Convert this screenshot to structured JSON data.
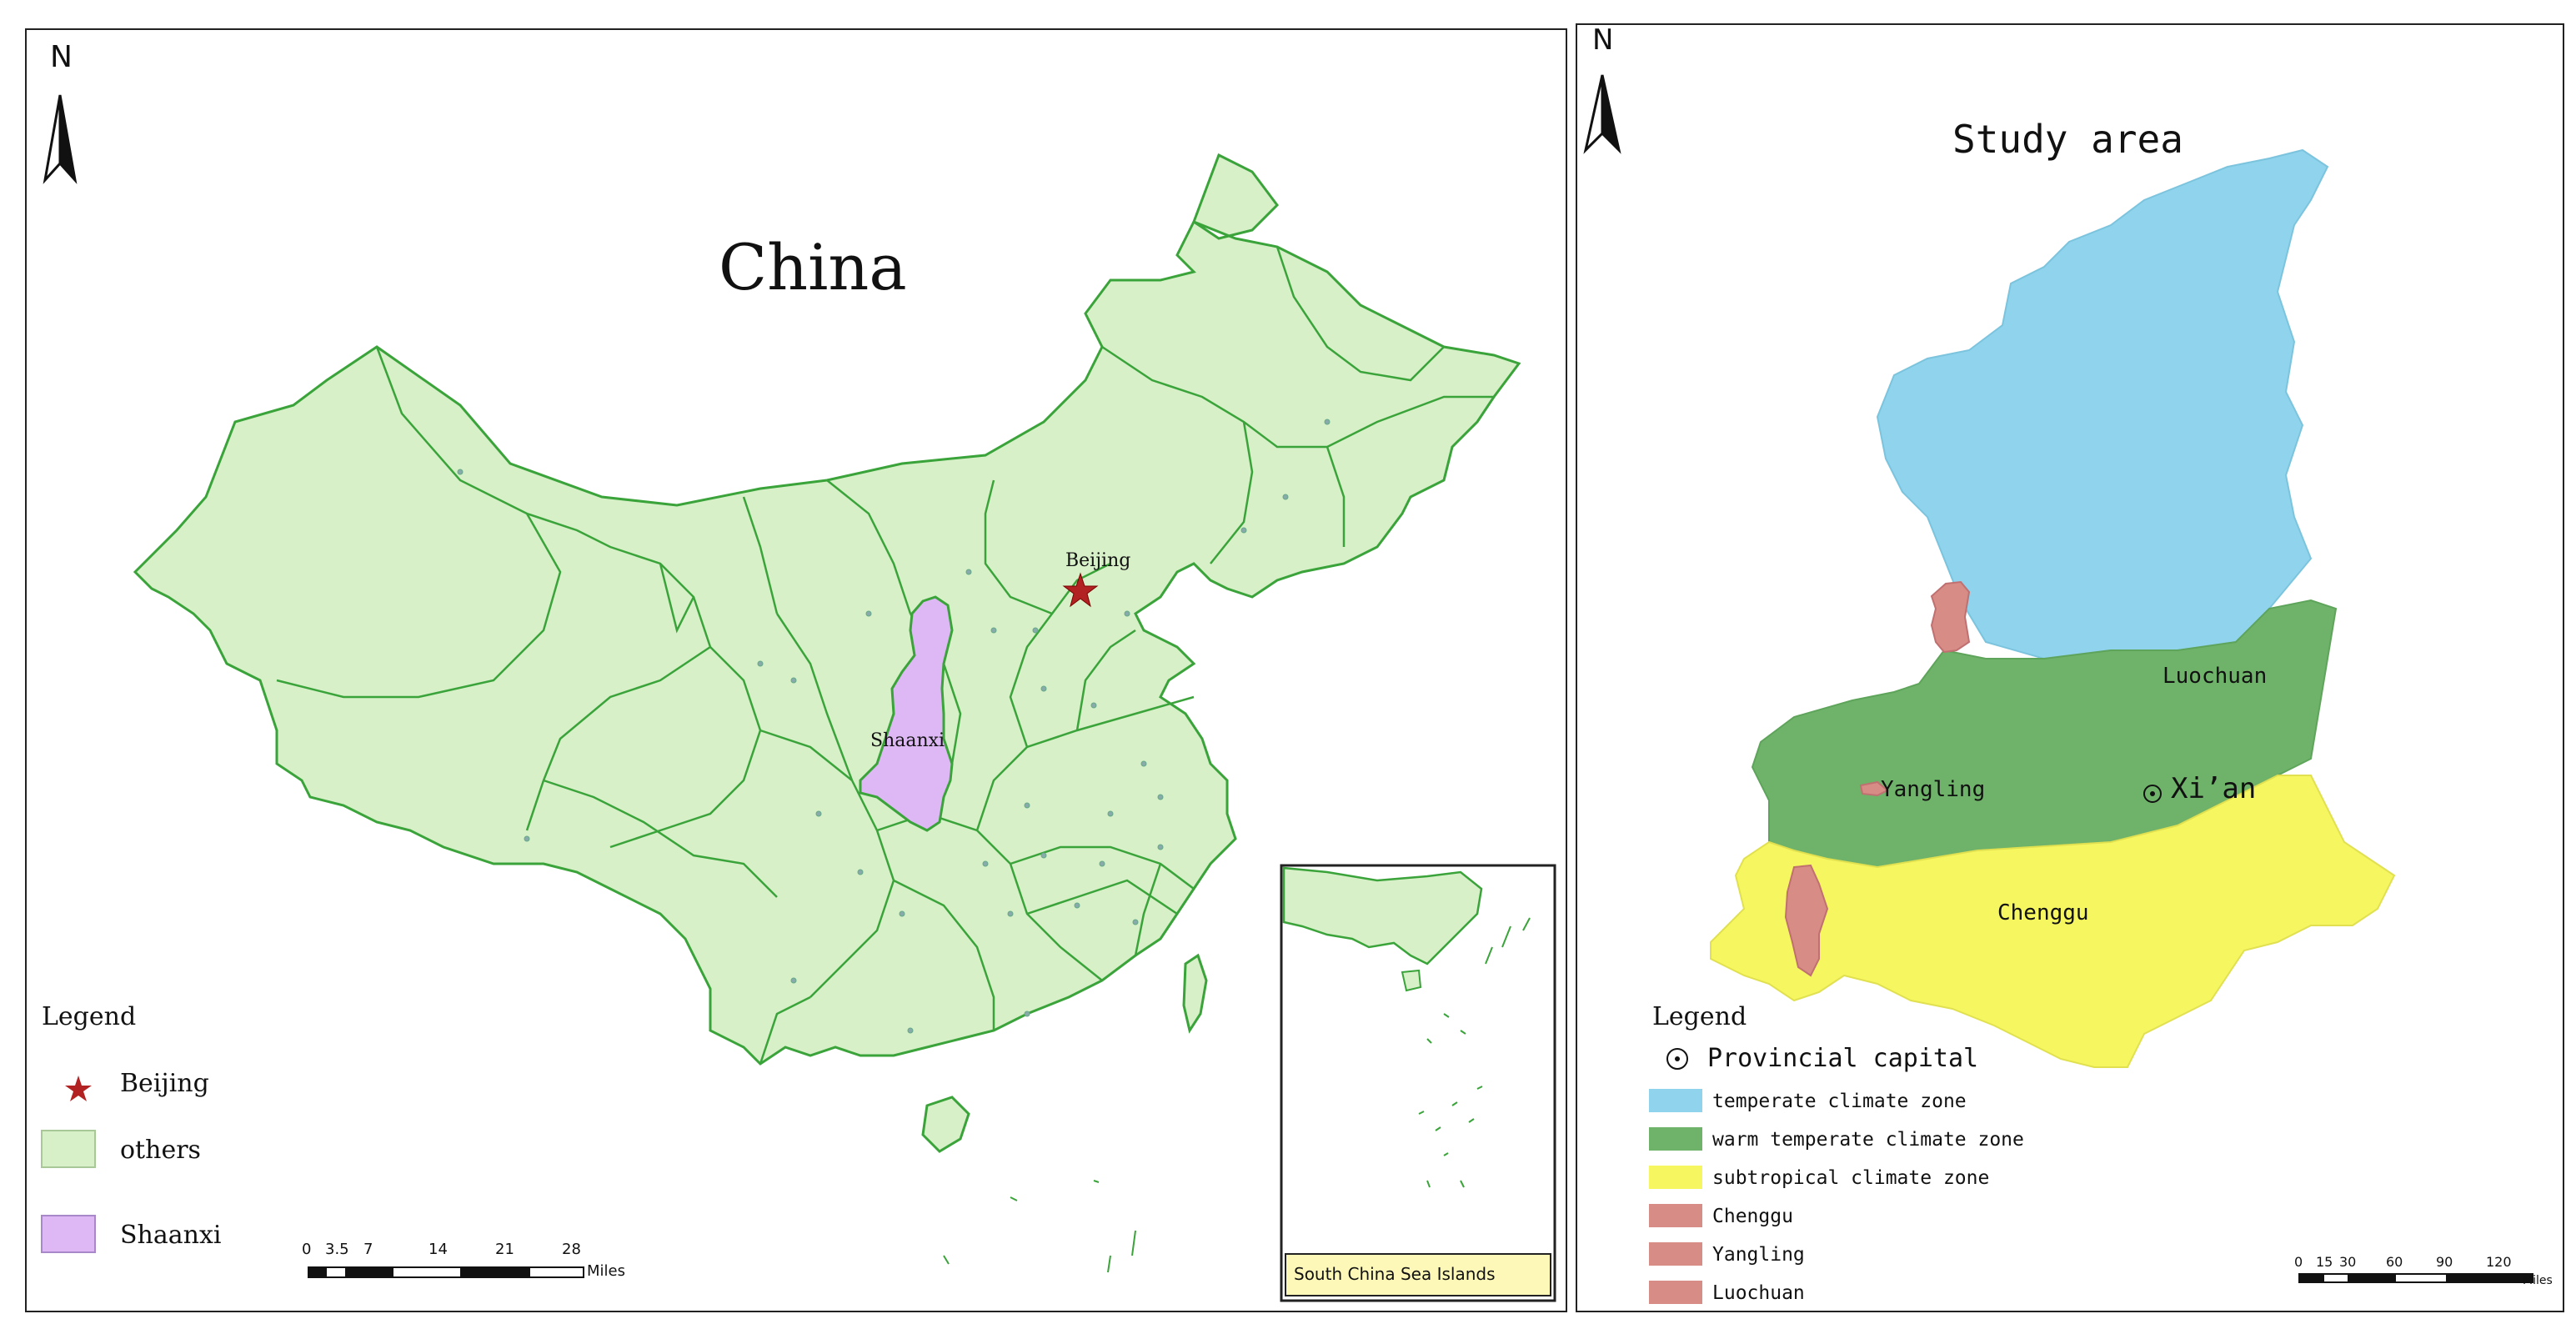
{
  "china_map": {
    "north_label": "N",
    "title": "China",
    "labels": {
      "beijing": "Beijing",
      "shaanxi": "Shaanxi"
    },
    "inset_label": "South China Sea Islands",
    "legend": {
      "title": "Legend",
      "items": [
        {
          "label": "Beijing",
          "symbol": "star",
          "color": "#b22222"
        },
        {
          "label": "others",
          "symbol": "box",
          "color": "#d7f0c8"
        },
        {
          "label": "Shaanxi",
          "symbol": "box",
          "color": "#deb8f5"
        }
      ]
    },
    "scale_bar": {
      "ticks": [
        "0",
        "3.5",
        "7",
        "14",
        "21",
        "28"
      ],
      "unit": "Miles"
    },
    "colors": {
      "land": "#d7f0c8",
      "border": "#3aa33a",
      "shaanxi": "#deb8f5",
      "star": "#b22222"
    }
  },
  "study_area_map": {
    "north_label": "N",
    "title": "Study area",
    "labels": {
      "luochuan": "Luochuan",
      "yangling": "Yangling",
      "xian": "Xi’an",
      "chenggu": "Chenggu"
    },
    "legend": {
      "title": "Legend",
      "items": [
        {
          "label": "Provincial capital",
          "symbol": "dot-circle"
        },
        {
          "label": "temperate climate zone",
          "symbol": "box",
          "color": "#8fd3ec"
        },
        {
          "label": "warm temperate climate zone",
          "symbol": "box",
          "color": "#6fb36a"
        },
        {
          "label": "subtropical climate zone",
          "symbol": "box",
          "color": "#f6f760"
        },
        {
          "label": "Chenggu",
          "symbol": "box",
          "color": "#d88c86"
        },
        {
          "label": "Yangling",
          "symbol": "box",
          "color": "#d88c86"
        },
        {
          "label": "Luochuan",
          "symbol": "box",
          "color": "#d88c86"
        }
      ]
    },
    "scale_bar": {
      "ticks": [
        "0",
        "15",
        "30",
        "60",
        "90",
        "120"
      ],
      "unit": "Miles"
    },
    "colors": {
      "temperate": "#8fd3ec",
      "warm_temperate": "#6fb36a",
      "subtropical": "#f6f760",
      "county": "#d88c86"
    }
  }
}
